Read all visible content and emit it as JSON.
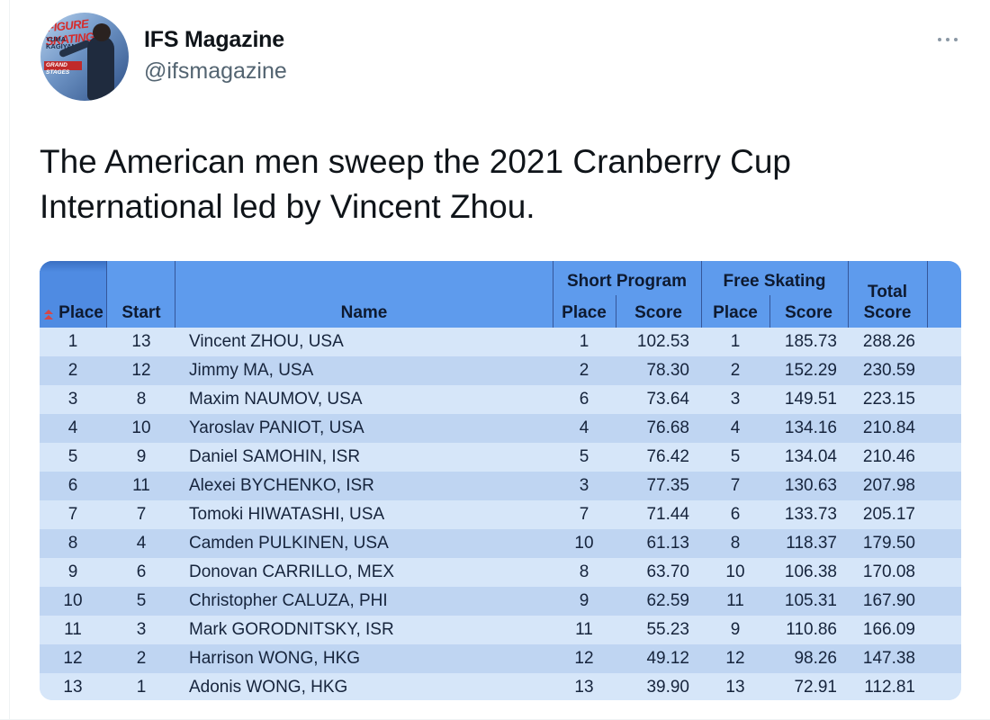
{
  "author": {
    "display_name": "IFS Magazine",
    "handle": "@ifsmagazine",
    "avatar_icon": "magazine-cover-avatar",
    "avatar_text": {
      "masthead": "IFIGURE SKATING",
      "cover_name": "YUMA KAGIYAMA",
      "cover_headline": "GRAND STAGES"
    }
  },
  "tweet": {
    "text": "The American men sweep the 2021 Cranberry Cup International led by Vincent Zhou."
  },
  "table": {
    "headers": {
      "place": "Place",
      "start": "Start",
      "name": "Name",
      "short_program": "Short Program",
      "free_skating": "Free Skating",
      "total_line1": "Total",
      "total_line2": "Score",
      "sp_place": "Place",
      "sp_score": "Score",
      "fs_place": "Place",
      "fs_score": "Score"
    },
    "sort_icon": "sort-arrows-icon",
    "rows": [
      {
        "place": "1",
        "start": "13",
        "name": "Vincent ZHOU, USA",
        "sp_place": "1",
        "sp_score": "102.53",
        "fs_place": "1",
        "fs_score": "185.73",
        "total": "288.26"
      },
      {
        "place": "2",
        "start": "12",
        "name": "Jimmy MA, USA",
        "sp_place": "2",
        "sp_score": "78.30",
        "fs_place": "2",
        "fs_score": "152.29",
        "total": "230.59"
      },
      {
        "place": "3",
        "start": "8",
        "name": "Maxim NAUMOV, USA",
        "sp_place": "6",
        "sp_score": "73.64",
        "fs_place": "3",
        "fs_score": "149.51",
        "total": "223.15"
      },
      {
        "place": "4",
        "start": "10",
        "name": "Yaroslav PANIOT, USA",
        "sp_place": "4",
        "sp_score": "76.68",
        "fs_place": "4",
        "fs_score": "134.16",
        "total": "210.84"
      },
      {
        "place": "5",
        "start": "9",
        "name": "Daniel SAMOHIN, ISR",
        "sp_place": "5",
        "sp_score": "76.42",
        "fs_place": "5",
        "fs_score": "134.04",
        "total": "210.46"
      },
      {
        "place": "6",
        "start": "11",
        "name": "Alexei BYCHENKO, ISR",
        "sp_place": "3",
        "sp_score": "77.35",
        "fs_place": "7",
        "fs_score": "130.63",
        "total": "207.98"
      },
      {
        "place": "7",
        "start": "7",
        "name": "Tomoki HIWATASHI, USA",
        "sp_place": "7",
        "sp_score": "71.44",
        "fs_place": "6",
        "fs_score": "133.73",
        "total": "205.17"
      },
      {
        "place": "8",
        "start": "4",
        "name": "Camden PULKINEN, USA",
        "sp_place": "10",
        "sp_score": "61.13",
        "fs_place": "8",
        "fs_score": "118.37",
        "total": "179.50"
      },
      {
        "place": "9",
        "start": "6",
        "name": "Donovan CARRILLO, MEX",
        "sp_place": "8",
        "sp_score": "63.70",
        "fs_place": "10",
        "fs_score": "106.38",
        "total": "170.08"
      },
      {
        "place": "10",
        "start": "5",
        "name": "Christopher CALUZA, PHI",
        "sp_place": "9",
        "sp_score": "62.59",
        "fs_place": "11",
        "fs_score": "105.31",
        "total": "167.90"
      },
      {
        "place": "11",
        "start": "3",
        "name": "Mark GORODNITSKY, ISR",
        "sp_place": "11",
        "sp_score": "55.23",
        "fs_place": "9",
        "fs_score": "110.86",
        "total": "166.09"
      },
      {
        "place": "12",
        "start": "2",
        "name": "Harrison WONG, HKG",
        "sp_place": "12",
        "sp_score": "49.12",
        "fs_place": "12",
        "fs_score": "98.26",
        "total": "147.38"
      },
      {
        "place": "13",
        "start": "1",
        "name": "Adonis WONG, HKG",
        "sp_place": "13",
        "sp_score": "39.90",
        "fs_place": "13",
        "fs_score": "72.91",
        "total": "112.81"
      }
    ]
  },
  "colors": {
    "header_blue": "#5e9bed",
    "row_light": "#d6e6f9",
    "row_dark": "#bfd5f2",
    "handle_gray": "#536471"
  }
}
